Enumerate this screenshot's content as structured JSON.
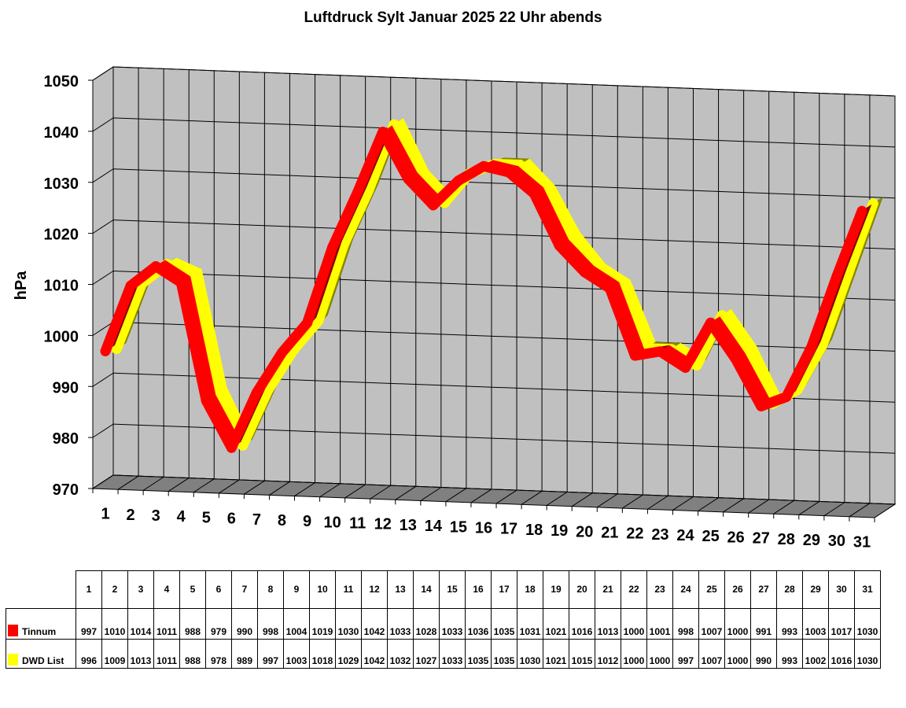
{
  "chart_data": {
    "type": "line",
    "title": "Luftdruck Sylt Januar 2025 22 Uhr abends",
    "ylabel": "hPa",
    "xlabel": "",
    "ylim": [
      970,
      1050
    ],
    "yticks": [
      "970",
      "980",
      "990",
      "1000",
      "1010",
      "1020",
      "1030",
      "1040",
      "1050"
    ],
    "categories": [
      "1",
      "2",
      "3",
      "4",
      "5",
      "6",
      "7",
      "8",
      "9",
      "10",
      "11",
      "12",
      "13",
      "14",
      "15",
      "16",
      "17",
      "18",
      "19",
      "20",
      "21",
      "22",
      "23",
      "24",
      "25",
      "26",
      "27",
      "28",
      "29",
      "30",
      "31"
    ],
    "grid": true,
    "style": "3d-ribbon",
    "series": [
      {
        "name": "Tinnum",
        "color": "#ff0000",
        "values": [
          997,
          1010,
          1014,
          1011,
          988,
          979,
          990,
          998,
          1004,
          1019,
          1030,
          1042,
          1033,
          1028,
          1033,
          1036,
          1035,
          1031,
          1021,
          1016,
          1013,
          1000,
          1001,
          998,
          1007,
          1000,
          991,
          993,
          1003,
          1017,
          1030
        ]
      },
      {
        "name": "DWD List",
        "color": "#ffff00",
        "values": [
          996,
          1009,
          1013,
          1011,
          988,
          978,
          989,
          997,
          1003,
          1018,
          1029,
          1042,
          1032,
          1027,
          1033,
          1035,
          1035,
          1030,
          1021,
          1015,
          1012,
          1000,
          1000,
          997,
          1007,
          1000,
          990,
          993,
          1002,
          1016,
          1030
        ]
      }
    ]
  }
}
